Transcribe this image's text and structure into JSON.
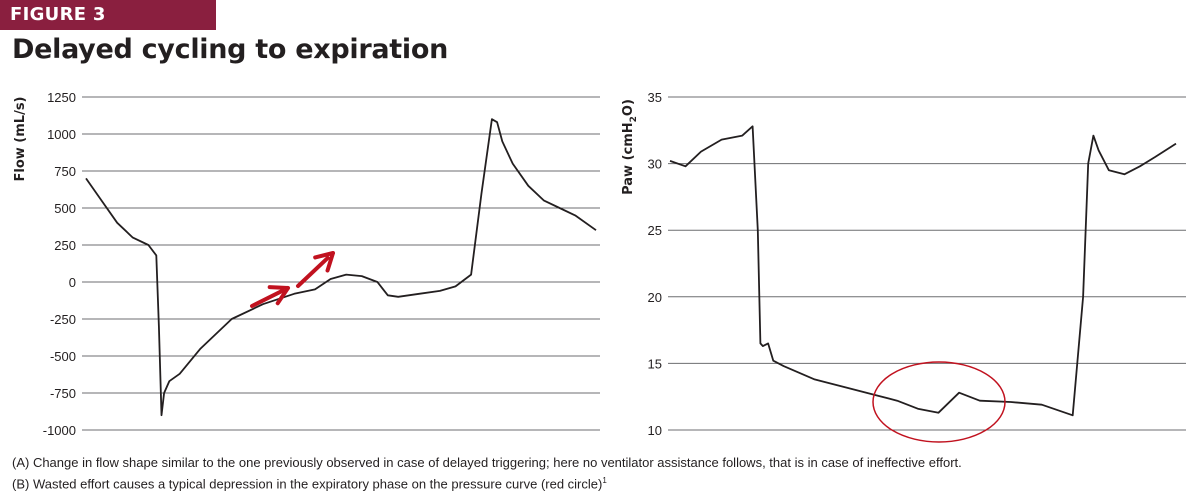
{
  "figure_label": "FIGURE 3",
  "title": "Delayed cycling to expiration",
  "caption": {
    "line_a": "(A) Change in flow shape similar to the one previously observed in case of delayed triggering; here no ventilator assistance follows, that is in case of ineffective effort.",
    "line_b": "(B) Wasted effort causes a typical depression in the expiratory phase on the pressure curve (red circle)",
    "line_b_ref": "1"
  },
  "colors": {
    "accent": "#8a1f3f",
    "trace": "#231f20",
    "annotation": "#c1121f",
    "grid": "#6d6e71"
  },
  "chart_data": [
    {
      "type": "line",
      "ylabel": "Flow (mL/s)",
      "ylim": [
        -1000,
        1250
      ],
      "yticks": [
        1250,
        1000,
        750,
        500,
        250,
        0,
        -250,
        -500,
        -750,
        -1000
      ],
      "grid": "horizontal",
      "x": [
        0,
        0.03,
        0.06,
        0.09,
        0.12,
        0.135,
        0.14,
        0.145,
        0.15,
        0.16,
        0.18,
        0.22,
        0.28,
        0.34,
        0.4,
        0.44,
        0.47,
        0.5,
        0.53,
        0.56,
        0.58,
        0.6,
        0.64,
        0.68,
        0.71,
        0.74,
        0.76,
        0.78,
        0.79,
        0.8,
        0.82,
        0.85,
        0.88,
        0.91,
        0.94,
        0.98
      ],
      "values": [
        700,
        550,
        400,
        300,
        250,
        180,
        -300,
        -900,
        -750,
        -670,
        -620,
        -450,
        -250,
        -150,
        -80,
        -50,
        20,
        50,
        40,
        0,
        -90,
        -100,
        -80,
        -60,
        -30,
        50,
        600,
        1100,
        1080,
        950,
        800,
        650,
        550,
        500,
        450,
        350
      ],
      "annotation": "two red arrows near the rising segment"
    },
    {
      "type": "line",
      "ylabel": "Paw (cmH",
      "ylabel_sub": "2",
      "ylabel_end": "O)",
      "ylim": [
        10,
        35
      ],
      "yticks": [
        35,
        30,
        25,
        20,
        15,
        10
      ],
      "grid": "horizontal",
      "x": [
        0,
        0.03,
        0.06,
        0.1,
        0.14,
        0.16,
        0.17,
        0.175,
        0.18,
        0.19,
        0.2,
        0.22,
        0.28,
        0.34,
        0.4,
        0.44,
        0.48,
        0.52,
        0.56,
        0.6,
        0.66,
        0.72,
        0.78,
        0.8,
        0.81,
        0.82,
        0.83,
        0.85,
        0.88,
        0.91,
        0.94,
        0.98
      ],
      "values": [
        30.2,
        29.8,
        30.9,
        31.8,
        32.1,
        32.8,
        25,
        16.5,
        16.3,
        16.5,
        15.2,
        14.8,
        13.8,
        13.2,
        12.6,
        12.2,
        11.6,
        11.3,
        12.8,
        12.2,
        12.1,
        11.9,
        11.1,
        20,
        30,
        32.1,
        31.0,
        29.5,
        29.2,
        29.8,
        30.5,
        31.5
      ],
      "annotation": "red circle around expiratory depression"
    }
  ]
}
